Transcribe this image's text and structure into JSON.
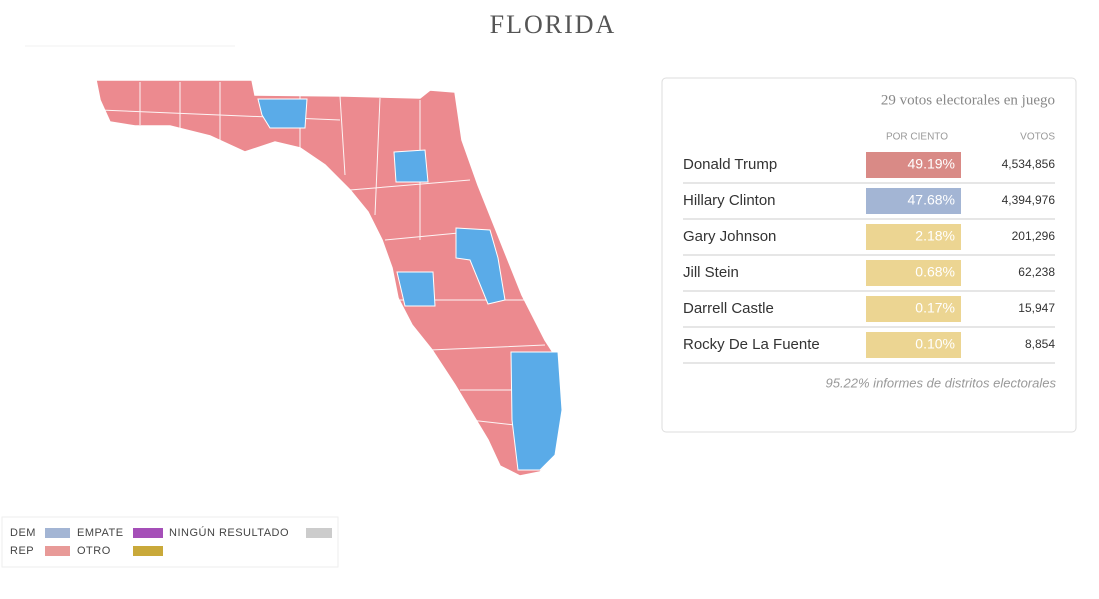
{
  "header": {
    "title": "FLORIDA"
  },
  "panel": {
    "heading": "29 votos electorales en juego",
    "columns": [
      "POR CIENTO",
      "VOTOS"
    ],
    "rows": [
      {
        "name": "Donald Trump",
        "percent": "49.19%",
        "votes": "4,534,856",
        "color": "#d98a86"
      },
      {
        "name": "Hillary Clinton",
        "percent": "47.68%",
        "votes": "4,394,976",
        "color": "#a3b5d4"
      },
      {
        "name": "Gary Johnson",
        "percent": "2.18%",
        "votes": "201,296",
        "color": "#ecd592"
      },
      {
        "name": "Jill Stein",
        "percent": "0.68%",
        "votes": "62,238",
        "color": "#ecd592"
      },
      {
        "name": "Darrell Castle",
        "percent": "0.17%",
        "votes": "15,947",
        "color": "#ecd592"
      },
      {
        "name": "Rocky De La Fuente",
        "percent": "0.10%",
        "votes": "8,854",
        "color": "#ecd592"
      }
    ],
    "footer": "95.22% informes de distritos electorales"
  },
  "legend": [
    {
      "label": "DEM",
      "color": "#a3b5d4"
    },
    {
      "label": "EMPATE",
      "color": "#a54fb8"
    },
    {
      "label": "NINGÚN RESULTADO",
      "color": "#cccccc"
    },
    {
      "label": "REP",
      "color": "#e89a98"
    },
    {
      "label": "OTRO",
      "color": "#c9a93a"
    }
  ]
}
